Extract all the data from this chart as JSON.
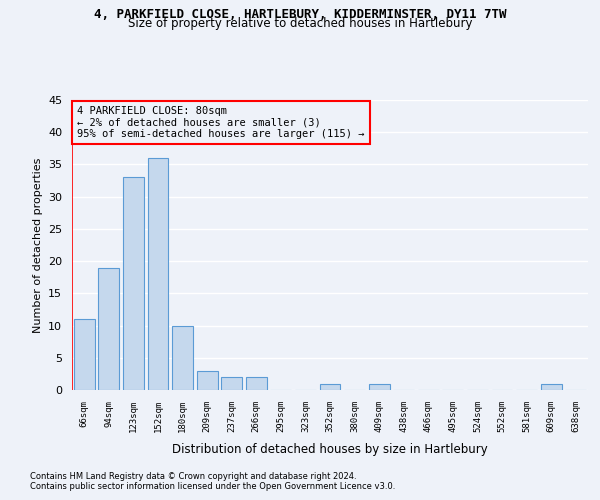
{
  "title_line1": "4, PARKFIELD CLOSE, HARTLEBURY, KIDDERMINSTER, DY11 7TW",
  "title_line2": "Size of property relative to detached houses in Hartlebury",
  "xlabel": "Distribution of detached houses by size in Hartlebury",
  "ylabel": "Number of detached properties",
  "bar_color": "#c5d8ed",
  "bar_edge_color": "#5b9bd5",
  "categories": [
    "66sqm",
    "94sqm",
    "123sqm",
    "152sqm",
    "180sqm",
    "209sqm",
    "237sqm",
    "266sqm",
    "295sqm",
    "323sqm",
    "352sqm",
    "380sqm",
    "409sqm",
    "438sqm",
    "466sqm",
    "495sqm",
    "524sqm",
    "552sqm",
    "581sqm",
    "609sqm",
    "638sqm"
  ],
  "values": [
    11,
    19,
    33,
    36,
    10,
    3,
    2,
    2,
    0,
    0,
    1,
    0,
    1,
    0,
    0,
    0,
    0,
    0,
    0,
    1,
    0
  ],
  "ylim": [
    0,
    45
  ],
  "yticks": [
    0,
    5,
    10,
    15,
    20,
    25,
    30,
    35,
    40,
    45
  ],
  "annotation_box_text": "4 PARKFIELD CLOSE: 80sqm\n← 2% of detached houses are smaller (3)\n95% of semi-detached houses are larger (115) →",
  "annotation_box_color": "#ff0000",
  "background_color": "#eef2f9",
  "grid_color": "#ffffff",
  "footnote1": "Contains HM Land Registry data © Crown copyright and database right 2024.",
  "footnote2": "Contains public sector information licensed under the Open Government Licence v3.0."
}
